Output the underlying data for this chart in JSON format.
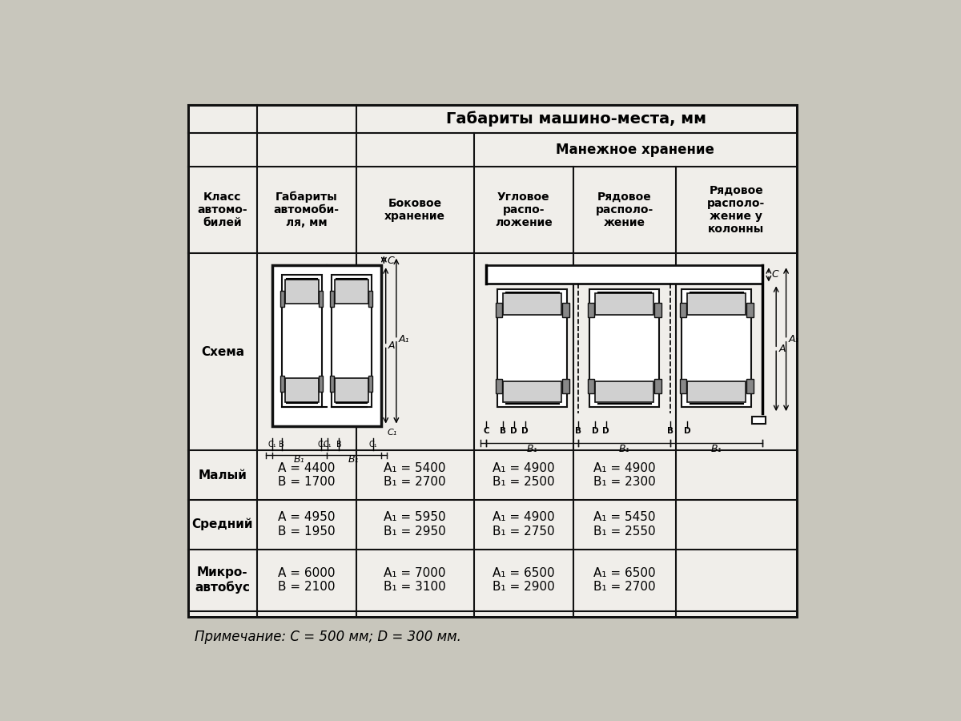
{
  "bg_color": "#c8c6bc",
  "table_bg": "#e8e6de",
  "cell_bg": "#f0eeea",
  "border_color": "#111111",
  "title_main": "Габариты машино-места, мм",
  "title_manezh": "Манежное хранение",
  "col0_header": "Класс\nавтомо-\nбилей",
  "col1_header": "Габариты\nавтомоби-\nля, мм",
  "col2_header": "Боковое\nхранение",
  "col3_header": "Угловое\nраспо-\nложение",
  "col4_header": "Рядовое\nрасполо-\nжение",
  "col5_header": "Рядовое\nрасполо-\nжение у\nколонны",
  "schema_label": "Схема",
  "rows": [
    {
      "class": "Малый",
      "col1": "A = 4400\nB = 1700",
      "col2": "A₁ = 5400\nB₁ = 2700",
      "col3": "A₁ = 4900\nB₁ = 2500",
      "col4": "A₁ = 4900\nB₁ = 2300"
    },
    {
      "class": "Средний",
      "col1": "A = 4950\nB = 1950",
      "col2": "A₁ = 5950\nB₁ = 2950",
      "col3": "A₁ = 4900\nB₁ = 2750",
      "col4": "A₁ = 5450\nB₁ = 2550"
    },
    {
      "class": "Микро-\nавтобус",
      "col1": "A = 6000\nB = 2100",
      "col2": "A₁ = 7000\nB₁ = 3100",
      "col3": "A₁ = 6500\nB₁ = 2900",
      "col4": "A₁ = 6500\nB₁ = 2700"
    }
  ],
  "note": "Примечание: C = 500 мм; D = 300 мм."
}
